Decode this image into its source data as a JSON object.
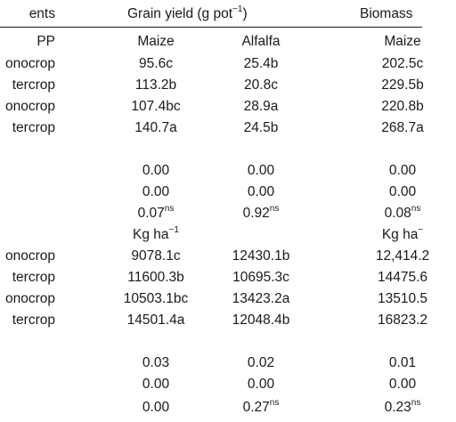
{
  "header": {
    "col0": "ents",
    "grain_yield_prefix": "Grain yield (g pot",
    "grain_yield_exp": "−1",
    "grain_yield_suffix": ")",
    "biomass": "Biomass"
  },
  "subheader": {
    "col0": "PP",
    "maize": "Maize",
    "alfalfa": "Alfalfa",
    "maize2": "Maize"
  },
  "rows_pot": [
    {
      "label": "onocrop",
      "maize": "95.6c",
      "alfalfa": "25.4b",
      "biomass": "202.5c"
    },
    {
      "label": "tercrop",
      "maize": "113.2b",
      "alfalfa": "20.8c",
      "biomass": "229.5b"
    },
    {
      "label": "onocrop",
      "maize": "107.4bc",
      "alfalfa": "28.9a",
      "biomass": "220.8b"
    },
    {
      "label": "tercrop",
      "maize": "140.7a",
      "alfalfa": "24.5b",
      "biomass": "268.7a"
    }
  ],
  "stats_pot": [
    {
      "maize": "0.00",
      "maize_sup": "",
      "alfalfa": "0.00",
      "alfalfa_sup": "",
      "biomass": "0.00",
      "biomass_sup": ""
    },
    {
      "maize": "0.00",
      "maize_sup": "",
      "alfalfa": "0.00",
      "alfalfa_sup": "",
      "biomass": "0.00",
      "biomass_sup": ""
    },
    {
      "maize": "0.07",
      "maize_sup": "ns",
      "alfalfa": "0.92",
      "alfalfa_sup": "ns",
      "biomass": "0.08",
      "biomass_sup": "ns"
    }
  ],
  "unit_row": {
    "maize_unit": "Kg ha",
    "maize_exp": "−1",
    "biomass_unit": "Kg ha",
    "biomass_exp": "−"
  },
  "rows_ha": [
    {
      "label": "onocrop",
      "maize": "9078.1c",
      "alfalfa": "12430.1b",
      "biomass": "12,414.2"
    },
    {
      "label": "tercrop",
      "maize": "11600.3b",
      "alfalfa": "10695.3c",
      "biomass": "14475.6"
    },
    {
      "label": "onocrop",
      "maize": "10503.1bc",
      "alfalfa": "13423.2a",
      "biomass": "13510.5"
    },
    {
      "label": "tercrop",
      "maize": "14501.4a",
      "alfalfa": "12048.4b",
      "biomass": "16823.2"
    }
  ],
  "stats_ha": [
    {
      "maize": "0.03",
      "maize_sup": "",
      "alfalfa": "0.02",
      "alfalfa_sup": "",
      "biomass": "0.01",
      "biomass_sup": ""
    },
    {
      "maize": "0.00",
      "maize_sup": "",
      "alfalfa": "0.00",
      "alfalfa_sup": "",
      "biomass": "0.00",
      "biomass_sup": ""
    },
    {
      "maize": "0.00",
      "maize_sup": "",
      "alfalfa": "0.27",
      "alfalfa_sup": "ns",
      "biomass": "0.23",
      "biomass_sup": "ns"
    }
  ]
}
